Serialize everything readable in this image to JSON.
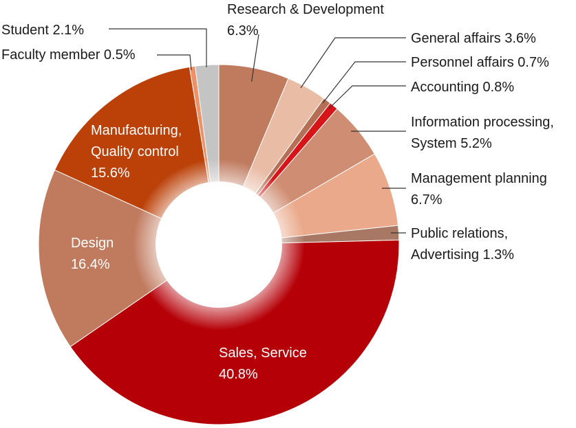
{
  "chart_data": {
    "type": "pie",
    "donut": true,
    "unit": "%",
    "title": "",
    "slices": [
      {
        "label": "Research & Development",
        "lines": [
          "Research & Development",
          "6.3%"
        ],
        "value": 6.3,
        "color": "#c07a5e"
      },
      {
        "label": "General affairs",
        "lines": [
          "General affairs  3.6%"
        ],
        "value": 3.6,
        "color": "#e9bca6"
      },
      {
        "label": "Personnel affairs",
        "lines": [
          "Personnel affairs  0.7%"
        ],
        "value": 0.7,
        "color": "#b56f55"
      },
      {
        "label": "Accounting",
        "lines": [
          "Accounting  0.8%"
        ],
        "value": 0.8,
        "color": "#d71518"
      },
      {
        "label": "Information processing, System",
        "lines": [
          "Information processing,",
          "System  5.2%"
        ],
        "value": 5.2,
        "color": "#cf8e73"
      },
      {
        "label": "Management planning",
        "lines": [
          "Management planning",
          "6.7%"
        ],
        "value": 6.7,
        "color": "#eaa98a"
      },
      {
        "label": "Public relations, Advertising",
        "lines": [
          "Public relations,",
          "Advertising  1.3%"
        ],
        "value": 1.3,
        "color": "#a97865"
      },
      {
        "label": "Sales, Service",
        "lines": [
          "Sales, Service",
          "40.8%"
        ],
        "value": 40.8,
        "color": "#b50007"
      },
      {
        "label": "Design",
        "lines": [
          "Design",
          "16.4%"
        ],
        "value": 16.4,
        "color": "#c07a5e"
      },
      {
        "label": "Manufacturing, Quality control",
        "lines": [
          "Manufacturing,",
          "Quality control",
          "15.6%"
        ],
        "value": 15.6,
        "color": "#bb4108"
      },
      {
        "label": "Faculty member",
        "lines": [
          "Faculty member  0.5%"
        ],
        "value": 0.5,
        "color": "#ee9068"
      },
      {
        "label": "Student",
        "lines": [
          "Student  2.1%"
        ],
        "value": 2.1,
        "color": "#c4c4c4"
      }
    ]
  }
}
